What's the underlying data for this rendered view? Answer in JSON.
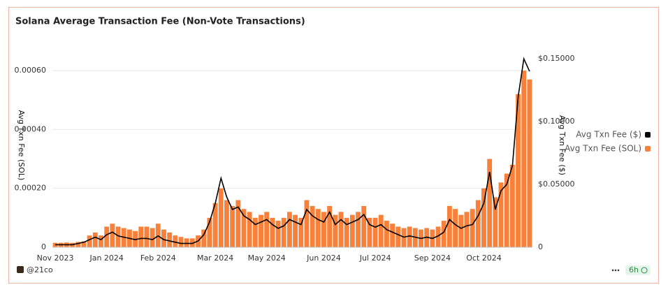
{
  "chart_data": {
    "type": "bar_line",
    "title": "Solana Average Transaction Fee (Non-Vote Transactions)",
    "categories": [
      "Nov 2023",
      null,
      null,
      null,
      null,
      null,
      null,
      null,
      null,
      "Jan 2024",
      null,
      null,
      null,
      null,
      null,
      null,
      null,
      null,
      "Feb 2024",
      null,
      null,
      null,
      null,
      null,
      null,
      null,
      null,
      null,
      "Mar 2024",
      null,
      null,
      null,
      null,
      null,
      null,
      null,
      null,
      "May 2024",
      null,
      null,
      null,
      null,
      null,
      null,
      null,
      null,
      null,
      "Jun 2024",
      null,
      null,
      null,
      null,
      null,
      null,
      null,
      null,
      "Jul 2024",
      null,
      null,
      null,
      null,
      null,
      null,
      null,
      null,
      null,
      "Sep 2024",
      null,
      null,
      null,
      null,
      null,
      null,
      null,
      null,
      "Oct 2024",
      null,
      null,
      null,
      null,
      null,
      null,
      null,
      null
    ],
    "series": [
      {
        "name": "Avg Txn Fee ($)",
        "color": "#000000",
        "axis": "y2",
        "values": [
          0.002,
          0.002,
          0.002,
          0.002,
          0.003,
          0.004,
          0.006,
          0.008,
          0.006,
          0.01,
          0.012,
          0.009,
          0.008,
          0.007,
          0.006,
          0.007,
          0.007,
          0.006,
          0.009,
          0.006,
          0.005,
          0.004,
          0.003,
          0.003,
          0.003,
          0.005,
          0.01,
          0.02,
          0.035,
          0.055,
          0.04,
          0.03,
          0.032,
          0.025,
          0.022,
          0.018,
          0.02,
          0.022,
          0.018,
          0.015,
          0.017,
          0.022,
          0.02,
          0.018,
          0.03,
          0.025,
          0.022,
          0.02,
          0.028,
          0.018,
          0.022,
          0.018,
          0.02,
          0.022,
          0.026,
          0.018,
          0.016,
          0.018,
          0.014,
          0.012,
          0.01,
          0.008,
          0.009,
          0.008,
          0.007,
          0.008,
          0.007,
          0.009,
          0.012,
          0.022,
          0.018,
          0.015,
          0.017,
          0.018,
          0.025,
          0.035,
          0.06,
          0.03,
          0.045,
          0.05,
          0.065,
          0.12,
          0.15,
          0.14
        ]
      },
      {
        "name": "Avg Txn Fee (SOL)",
        "color": "#f7813a",
        "values": [
          1.5e-05,
          1.5e-05,
          1.6e-05,
          1.5e-05,
          1.8e-05,
          2e-05,
          4e-05,
          5e-05,
          4e-05,
          7e-05,
          8e-05,
          7e-05,
          6.5e-05,
          6e-05,
          5.5e-05,
          7e-05,
          7e-05,
          6.5e-05,
          8e-05,
          6e-05,
          5e-05,
          4e-05,
          3.5e-05,
          3e-05,
          3e-05,
          4e-05,
          6e-05,
          0.0001,
          0.00015,
          0.0002,
          0.00016,
          0.00014,
          0.00016,
          0.00013,
          0.00012,
          0.0001,
          0.00011,
          0.00012,
          0.0001,
          9e-05,
          0.0001,
          0.00012,
          0.00011,
          0.0001,
          0.00016,
          0.00014,
          0.00013,
          0.00012,
          0.00014,
          0.00011,
          0.00012,
          0.0001,
          0.00011,
          0.00012,
          0.00014,
          0.0001,
          0.0001,
          0.00011,
          9e-05,
          8e-05,
          7e-05,
          6.5e-05,
          7e-05,
          6.5e-05,
          6e-05,
          6.5e-05,
          6e-05,
          7e-05,
          9e-05,
          0.00014,
          0.00013,
          0.00011,
          0.00012,
          0.00013,
          0.00016,
          0.0002,
          0.0003,
          0.00017,
          0.00022,
          0.00025,
          0.00028,
          0.00052,
          0.0006,
          0.00057
        ]
      }
    ],
    "ylabel": "Avg Txn Fee (SOL)",
    "y2label": "Avg Txn Fee ($)",
    "ylim": [
      0,
      0.0007
    ],
    "yticks": [
      0,
      {
        "value": 0.0002,
        "label": "0.00020"
      },
      {
        "value": 0.0004,
        "label": "0.00040"
      },
      {
        "value": 0.0006,
        "label": "0.00060"
      }
    ],
    "y2lim": [
      0,
      0.164
    ],
    "y2ticks": [
      0,
      {
        "value": 0.05,
        "label": "$0.05000"
      },
      {
        "value": 0.1,
        "label": "$0.10000"
      },
      {
        "value": 0.15,
        "label": "$0.15000"
      }
    ],
    "grid": true,
    "legend": "right"
  },
  "footer": {
    "source": "@21co",
    "interval": "6h"
  }
}
